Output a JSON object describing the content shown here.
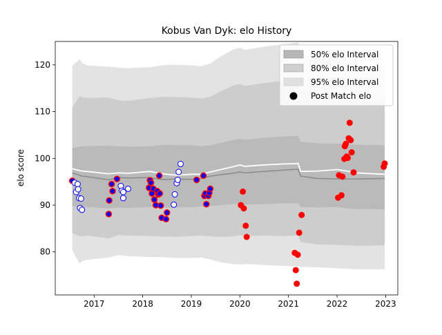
{
  "chart_data": {
    "type": "scatter",
    "title": "Kobus Van Dyk: elo History",
    "xlabel": "",
    "ylabel": "elo score",
    "xlim": [
      2016.2,
      2023.25
    ],
    "ylim": [
      70.8,
      125.0
    ],
    "x_ticks": [
      {
        "value": 2017,
        "label": "2017"
      },
      {
        "value": 2018,
        "label": "2018"
      },
      {
        "value": 2019,
        "label": "2019"
      },
      {
        "value": 2020,
        "label": "2020"
      },
      {
        "value": 2021,
        "label": "2021"
      },
      {
        "value": 2022,
        "label": "2022"
      },
      {
        "value": 2023,
        "label": "2023"
      }
    ],
    "y_ticks": [
      {
        "value": 80,
        "label": "80"
      },
      {
        "value": 90,
        "label": "90"
      },
      {
        "value": 100,
        "label": "100"
      },
      {
        "value": 110,
        "label": "110"
      },
      {
        "value": 120,
        "label": "120"
      }
    ],
    "grid": false,
    "legend": {
      "placement": "top-right",
      "entries": [
        {
          "label": "50% elo Interval",
          "kind": "band",
          "color": "#7f7f7f",
          "opacity": 0.55
        },
        {
          "label": "80% elo Interval",
          "kind": "band",
          "color": "#9a9a9a",
          "opacity": 0.45
        },
        {
          "label": "95% elo Interval",
          "kind": "band",
          "color": "#c8c8c8",
          "opacity": 0.5
        },
        {
          "label": "Post Match elo",
          "kind": "marker",
          "color": "#000000"
        }
      ]
    },
    "colors": {
      "band95": "#e3e3e3",
      "band80": "#cdcdcd",
      "band50": "#bababa",
      "median_line": "#8a8a8a",
      "mean_line": "#ffffff",
      "point_win": "#ffffff",
      "point_win_edge": "#0000ff",
      "point_loss": "#ff0000",
      "point_mixed_fill": "#0000ff",
      "point_mixed_edge": "#ff0000"
    },
    "bands": {
      "x": [
        2016.55,
        2016.7,
        2016.75,
        2016.85,
        2017.3,
        2017.5,
        2017.7,
        2018.15,
        2018.35,
        2018.5,
        2018.7,
        2019.0,
        2019.2,
        2019.4,
        2019.6,
        2019.85,
        2020.0,
        2020.1,
        2020.5,
        2020.9,
        2021.2,
        2021.25,
        2021.6,
        2022.0,
        2022.2,
        2022.4,
        2022.98
      ],
      "mean": [
        97.8,
        97.4,
        97.3,
        97.2,
        96.7,
        96.9,
        96.8,
        97.2,
        96.8,
        96.6,
        96.4,
        96.6,
        96.6,
        97.1,
        97.6,
        98.2,
        98.6,
        98.3,
        98.6,
        98.8,
        98.9,
        97.2,
        97.3,
        97.6,
        97.3,
        96.9,
        96.6
      ],
      "median": [
        96.9,
        96.4,
        96.2,
        96.1,
        95.4,
        95.9,
        95.8,
        95.9,
        95.5,
        95.5,
        95.6,
        95.5,
        95.7,
        96.2,
        96.5,
        96.8,
        97.1,
        96.9,
        97.2,
        97.5,
        97.7,
        96.2,
        95.7,
        95.6,
        95.6,
        95.6,
        95.7
      ],
      "p25": [
        89.8,
        89.6,
        89.6,
        89.6,
        89.3,
        89.5,
        89.4,
        89.6,
        89.5,
        89.5,
        89.5,
        89.6,
        89.7,
        89.8,
        90.0,
        90.2,
        90.3,
        90.1,
        90.2,
        90.4,
        90.4,
        89.6,
        89.5,
        89.6,
        89.3,
        89.2,
        89.1
      ],
      "p75": [
        102.2,
        102.5,
        102.6,
        102.6,
        102.7,
        102.6,
        102.5,
        102.6,
        102.8,
        102.9,
        102.8,
        102.8,
        102.6,
        102.8,
        103.3,
        103.9,
        104.2,
        104.0,
        104.4,
        104.7,
        104.8,
        103.6,
        103.2,
        103.2,
        103.0,
        102.9,
        102.8
      ],
      "p10": [
        84.0,
        83.4,
        83.3,
        83.5,
        82.9,
        83.6,
        83.5,
        83.4,
        83.3,
        83.3,
        83.2,
        83.4,
        83.5,
        83.3,
        83.2,
        83.3,
        83.6,
        83.4,
        83.5,
        83.4,
        83.5,
        82.1,
        81.6,
        81.5,
        81.4,
        81.3,
        81.4
      ],
      "p90": [
        110.9,
        113.3,
        113.1,
        112.9,
        113.0,
        112.4,
        112.3,
        112.9,
        113.1,
        113.2,
        113.1,
        113.0,
        112.8,
        113.2,
        114.3,
        115.5,
        115.9,
        115.5,
        116.1,
        116.6,
        116.9,
        114.5,
        113.8,
        113.3,
        112.8,
        112.5,
        112.3
      ],
      "p2_5": [
        80.4,
        77.5,
        78.0,
        78.3,
        78.8,
        79.3,
        79.1,
        78.9,
        78.9,
        78.8,
        78.7,
        78.7,
        78.8,
        78.4,
        77.8,
        77.4,
        77.3,
        77.4,
        77.2,
        77.0,
        76.9,
        76.8,
        76.7,
        76.5,
        76.4,
        76.3,
        76.3
      ],
      "p97_5": [
        119.8,
        121.2,
        120.4,
        119.9,
        119.6,
        119.4,
        119.3,
        119.5,
        119.8,
        120.0,
        120.0,
        119.9,
        119.7,
        120.3,
        121.8,
        123.2,
        123.7,
        123.2,
        123.9,
        124.4,
        124.8,
        122.3,
        121.6,
        121.0,
        120.5,
        120.0,
        119.9
      ]
    },
    "points": [
      {
        "x": 2016.55,
        "y": 95.2,
        "kind": "mixed"
      },
      {
        "x": 2016.6,
        "y": 94.8,
        "kind": "win"
      },
      {
        "x": 2016.63,
        "y": 92.8,
        "kind": "win"
      },
      {
        "x": 2016.66,
        "y": 94.5,
        "kind": "win"
      },
      {
        "x": 2016.67,
        "y": 93.4,
        "kind": "win"
      },
      {
        "x": 2016.69,
        "y": 91.5,
        "kind": "win"
      },
      {
        "x": 2016.71,
        "y": 89.4,
        "kind": "win"
      },
      {
        "x": 2016.73,
        "y": 91.4,
        "kind": "win"
      },
      {
        "x": 2016.75,
        "y": 89.0,
        "kind": "win"
      },
      {
        "x": 2017.3,
        "y": 88.1,
        "kind": "mixed"
      },
      {
        "x": 2017.31,
        "y": 91.0,
        "kind": "mixed"
      },
      {
        "x": 2017.36,
        "y": 94.5,
        "kind": "mixed"
      },
      {
        "x": 2017.38,
        "y": 93.0,
        "kind": "mixed"
      },
      {
        "x": 2017.47,
        "y": 95.6,
        "kind": "mixed"
      },
      {
        "x": 2017.55,
        "y": 94.1,
        "kind": "win"
      },
      {
        "x": 2017.57,
        "y": 93.1,
        "kind": "win"
      },
      {
        "x": 2017.6,
        "y": 91.5,
        "kind": "win"
      },
      {
        "x": 2017.6,
        "y": 92.8,
        "kind": "win"
      },
      {
        "x": 2017.7,
        "y": 93.5,
        "kind": "win"
      },
      {
        "x": 2018.13,
        "y": 93.7,
        "kind": "mixed"
      },
      {
        "x": 2018.15,
        "y": 95.3,
        "kind": "mixed"
      },
      {
        "x": 2018.17,
        "y": 94.8,
        "kind": "mixed"
      },
      {
        "x": 2018.19,
        "y": 92.5,
        "kind": "mixed"
      },
      {
        "x": 2018.22,
        "y": 93.5,
        "kind": "mixed"
      },
      {
        "x": 2018.24,
        "y": 91.2,
        "kind": "mixed"
      },
      {
        "x": 2018.27,
        "y": 90.0,
        "kind": "mixed"
      },
      {
        "x": 2018.3,
        "y": 93.0,
        "kind": "mixed"
      },
      {
        "x": 2018.32,
        "y": 92.3,
        "kind": "mixed"
      },
      {
        "x": 2018.34,
        "y": 96.3,
        "kind": "mixed"
      },
      {
        "x": 2018.35,
        "y": 92.5,
        "kind": "mixed"
      },
      {
        "x": 2018.37,
        "y": 89.9,
        "kind": "mixed"
      },
      {
        "x": 2018.39,
        "y": 87.3,
        "kind": "mixed"
      },
      {
        "x": 2018.48,
        "y": 87.0,
        "kind": "mixed"
      },
      {
        "x": 2018.5,
        "y": 88.4,
        "kind": "mixed"
      },
      {
        "x": 2018.64,
        "y": 90.1,
        "kind": "win"
      },
      {
        "x": 2018.66,
        "y": 92.3,
        "kind": "win"
      },
      {
        "x": 2018.7,
        "y": 94.7,
        "kind": "win"
      },
      {
        "x": 2018.72,
        "y": 95.4,
        "kind": "win"
      },
      {
        "x": 2018.74,
        "y": 97.1,
        "kind": "win"
      },
      {
        "x": 2018.78,
        "y": 98.8,
        "kind": "win"
      },
      {
        "x": 2019.11,
        "y": 95.4,
        "kind": "mixed"
      },
      {
        "x": 2019.25,
        "y": 96.3,
        "kind": "mixed"
      },
      {
        "x": 2019.27,
        "y": 92.0,
        "kind": "mixed"
      },
      {
        "x": 2019.29,
        "y": 92.5,
        "kind": "mixed"
      },
      {
        "x": 2019.31,
        "y": 90.2,
        "kind": "mixed"
      },
      {
        "x": 2019.35,
        "y": 92.0,
        "kind": "mixed"
      },
      {
        "x": 2019.37,
        "y": 92.6,
        "kind": "mixed"
      },
      {
        "x": 2019.39,
        "y": 93.5,
        "kind": "mixed"
      },
      {
        "x": 2020.02,
        "y": 90.0,
        "kind": "loss"
      },
      {
        "x": 2020.06,
        "y": 92.9,
        "kind": "loss"
      },
      {
        "x": 2020.08,
        "y": 89.3,
        "kind": "loss"
      },
      {
        "x": 2020.12,
        "y": 85.6,
        "kind": "loss"
      },
      {
        "x": 2020.14,
        "y": 83.2,
        "kind": "loss"
      },
      {
        "x": 2021.13,
        "y": 79.8,
        "kind": "loss"
      },
      {
        "x": 2021.15,
        "y": 76.1,
        "kind": "loss"
      },
      {
        "x": 2021.17,
        "y": 73.2,
        "kind": "loss"
      },
      {
        "x": 2021.19,
        "y": 79.4,
        "kind": "loss"
      },
      {
        "x": 2021.22,
        "y": 84.1,
        "kind": "loss"
      },
      {
        "x": 2021.27,
        "y": 87.9,
        "kind": "loss"
      },
      {
        "x": 2022.02,
        "y": 91.6,
        "kind": "loss"
      },
      {
        "x": 2022.04,
        "y": 96.4,
        "kind": "loss"
      },
      {
        "x": 2022.09,
        "y": 92.1,
        "kind": "loss"
      },
      {
        "x": 2022.11,
        "y": 96.1,
        "kind": "loss"
      },
      {
        "x": 2022.15,
        "y": 99.9,
        "kind": "loss"
      },
      {
        "x": 2022.16,
        "y": 102.6,
        "kind": "loss"
      },
      {
        "x": 2022.18,
        "y": 103.1,
        "kind": "loss"
      },
      {
        "x": 2022.2,
        "y": 100.4,
        "kind": "loss"
      },
      {
        "x": 2022.22,
        "y": 100.1,
        "kind": "loss"
      },
      {
        "x": 2022.24,
        "y": 104.3,
        "kind": "loss"
      },
      {
        "x": 2022.26,
        "y": 107.6,
        "kind": "loss"
      },
      {
        "x": 2022.28,
        "y": 103.9,
        "kind": "loss"
      },
      {
        "x": 2022.3,
        "y": 101.3,
        "kind": "loss"
      },
      {
        "x": 2022.34,
        "y": 97.0,
        "kind": "loss"
      },
      {
        "x": 2022.96,
        "y": 98.2,
        "kind": "loss"
      },
      {
        "x": 2022.98,
        "y": 98.9,
        "kind": "loss"
      }
    ]
  }
}
